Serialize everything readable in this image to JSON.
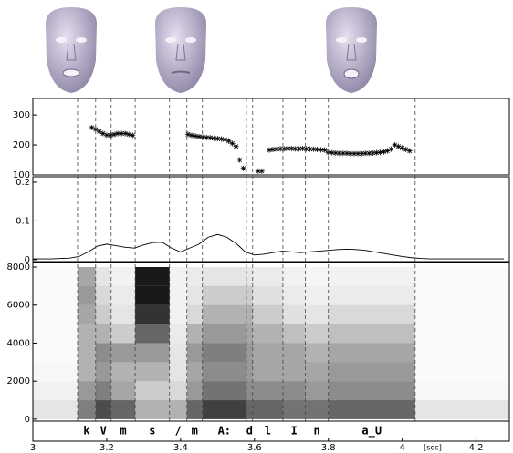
{
  "chart_data": [
    {
      "type": "scatter",
      "color": "#000000",
      "marker": "*",
      "ylim": [
        100,
        355
      ],
      "yticks": [
        100,
        200,
        300
      ],
      "x": [
        3.16,
        3.17,
        3.18,
        3.19,
        3.2,
        3.21,
        3.22,
        3.23,
        3.24,
        3.25,
        3.26,
        3.27,
        3.42,
        3.43,
        3.44,
        3.45,
        3.46,
        3.47,
        3.48,
        3.49,
        3.5,
        3.51,
        3.52,
        3.53,
        3.54,
        3.55,
        3.56,
        3.57,
        3.61,
        3.62,
        3.64,
        3.65,
        3.66,
        3.67,
        3.68,
        3.69,
        3.7,
        3.71,
        3.72,
        3.73,
        3.74,
        3.75,
        3.76,
        3.77,
        3.78,
        3.79,
        3.8,
        3.81,
        3.82,
        3.83,
        3.84,
        3.85,
        3.86,
        3.87,
        3.88,
        3.89,
        3.9,
        3.91,
        3.92,
        3.93,
        3.94,
        3.95,
        3.96,
        3.97,
        3.98,
        3.99,
        4.0,
        4.01,
        4.02
      ],
      "values": [
        258,
        252,
        245,
        238,
        233,
        232,
        235,
        238,
        238,
        238,
        235,
        232,
        235,
        232,
        230,
        228,
        226,
        225,
        224,
        222,
        221,
        220,
        218,
        213,
        205,
        195,
        150,
        122,
        113,
        113,
        183,
        185,
        186,
        187,
        187,
        188,
        188,
        187,
        187,
        188,
        187,
        186,
        186,
        185,
        184,
        183,
        175,
        174,
        173,
        172,
        172,
        172,
        171,
        171,
        171,
        171,
        172,
        172,
        173,
        174,
        175,
        177,
        180,
        186,
        200,
        195,
        190,
        185,
        180
      ]
    },
    {
      "type": "line",
      "color": "#000000",
      "ylim": [
        -0.005,
        0.214
      ],
      "yticks": [
        0,
        0.1,
        0.2
      ],
      "x": [
        3.0,
        3.025,
        3.05,
        3.075,
        3.1,
        3.125,
        3.15,
        3.175,
        3.2,
        3.225,
        3.25,
        3.275,
        3.3,
        3.325,
        3.35,
        3.375,
        3.4,
        3.425,
        3.45,
        3.475,
        3.5,
        3.525,
        3.55,
        3.575,
        3.6,
        3.625,
        3.65,
        3.675,
        3.7,
        3.725,
        3.75,
        3.775,
        3.8,
        3.825,
        3.85,
        3.875,
        3.9,
        3.925,
        3.95,
        3.975,
        4.0,
        4.025,
        4.05,
        4.075,
        4.1,
        4.125,
        4.15,
        4.175,
        4.2,
        4.225,
        4.25,
        4.275
      ],
      "values": [
        0.002,
        0.002,
        0.002,
        0.003,
        0.004,
        0.008,
        0.02,
        0.035,
        0.04,
        0.036,
        0.032,
        0.03,
        0.038,
        0.044,
        0.045,
        0.03,
        0.02,
        0.03,
        0.04,
        0.058,
        0.065,
        0.058,
        0.042,
        0.02,
        0.012,
        0.014,
        0.018,
        0.022,
        0.02,
        0.018,
        0.02,
        0.022,
        0.024,
        0.026,
        0.027,
        0.026,
        0.024,
        0.02,
        0.016,
        0.012,
        0.008,
        0.005,
        0.003,
        0.002,
        0.002,
        0.002,
        0.002,
        0.002,
        0.002,
        0.002,
        0.002,
        0.002
      ]
    },
    {
      "type": "heatmap",
      "color": "#000000",
      "ylim": [
        -100,
        8240
      ],
      "yticks": [
        0,
        2000,
        4000,
        6000,
        8000
      ],
      "x_edges": [
        3.0,
        3.121,
        3.17,
        3.212,
        3.277,
        3.37,
        3.417,
        3.459,
        3.578,
        3.595,
        3.677,
        3.738,
        3.8,
        4.035,
        4.29
      ],
      "y_edges": [
        0,
        1000,
        2000,
        3000,
        4000,
        5000,
        6000,
        7000,
        8000
      ],
      "values": [
        [
          0.1,
          0.05,
          0.03,
          0.02,
          0.02,
          0.02,
          0.02,
          0.02
        ],
        [
          0.5,
          0.4,
          0.3,
          0.3,
          0.3,
          0.35,
          0.4,
          0.35
        ],
        [
          0.7,
          0.5,
          0.4,
          0.45,
          0.3,
          0.2,
          0.15,
          0.1
        ],
        [
          0.6,
          0.35,
          0.3,
          0.4,
          0.2,
          0.1,
          0.08,
          0.05
        ],
        [
          0.3,
          0.2,
          0.3,
          0.4,
          0.6,
          0.8,
          0.9,
          0.9
        ],
        [
          0.3,
          0.15,
          0.1,
          0.1,
          0.08,
          0.05,
          0.05,
          0.05
        ],
        [
          0.6,
          0.4,
          0.35,
          0.4,
          0.3,
          0.15,
          0.1,
          0.08
        ],
        [
          0.75,
          0.55,
          0.45,
          0.5,
          0.4,
          0.3,
          0.2,
          0.1
        ],
        [
          0.6,
          0.45,
          0.4,
          0.4,
          0.35,
          0.3,
          0.2,
          0.1
        ],
        [
          0.6,
          0.45,
          0.35,
          0.35,
          0.3,
          0.2,
          0.12,
          0.08
        ],
        [
          0.55,
          0.45,
          0.35,
          0.35,
          0.25,
          0.12,
          0.08,
          0.05
        ],
        [
          0.55,
          0.4,
          0.35,
          0.3,
          0.2,
          0.1,
          0.06,
          0.04
        ],
        [
          0.6,
          0.45,
          0.4,
          0.35,
          0.25,
          0.15,
          0.08,
          0.05
        ],
        [
          0.1,
          0.03,
          0.02,
          0.02,
          0.02,
          0.02,
          0.02,
          0.02
        ]
      ]
    }
  ],
  "time_axis": {
    "xlim": [
      3,
      4.29
    ],
    "xticks": [
      3,
      3.2,
      3.4,
      3.6,
      3.8,
      4,
      4.2
    ],
    "xlabel": "[sec]"
  },
  "phonemes": {
    "boundaries": [
      3.121,
      3.17,
      3.212,
      3.277,
      3.37,
      3.417,
      3.459,
      3.578,
      3.595,
      3.677,
      3.738,
      3.8,
      4.035
    ],
    "labels": [
      "k",
      "V",
      "m",
      "s",
      "/",
      "m",
      "A:",
      "d",
      "l",
      "I",
      "n",
      "a_U"
    ]
  }
}
